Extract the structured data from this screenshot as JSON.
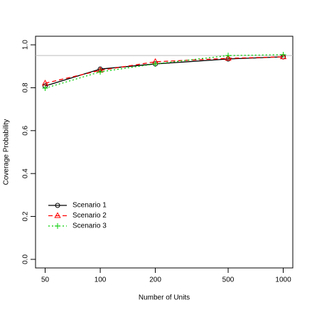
{
  "chart_data": {
    "type": "line",
    "x_label": "Number of Units",
    "y_label": "Coverage Probability",
    "x": [
      50,
      100,
      200,
      500,
      1000
    ],
    "series": [
      {
        "name": "Scenario 1",
        "color": "#000000",
        "dash": "solid",
        "marker": "circle",
        "values": [
          0.808,
          0.887,
          0.911,
          0.934,
          0.944
        ]
      },
      {
        "name": "Scenario 2",
        "color": "#ff0000",
        "dash": "dashed",
        "marker": "triangle",
        "values": [
          0.821,
          0.881,
          0.921,
          0.937,
          0.944
        ]
      },
      {
        "name": "Scenario 3",
        "color": "#00cd00",
        "dash": "dotted",
        "marker": "plus",
        "values": [
          0.798,
          0.874,
          0.911,
          0.95,
          0.954
        ]
      }
    ],
    "hline": 0.95,
    "hline_color": "#bebebe",
    "xlog": true,
    "xlim": [
      44.3,
      1128
    ],
    "xticks": [
      50,
      100,
      200,
      500,
      1000
    ],
    "ylim": [
      -0.04,
      1.04
    ],
    "yticks": [
      {
        "value": 0,
        "label": "0.0"
      },
      0.2,
      0.4,
      0.6,
      0.8,
      {
        "value": 1,
        "label": "1.0"
      }
    ],
    "legend": "bottom-left"
  }
}
